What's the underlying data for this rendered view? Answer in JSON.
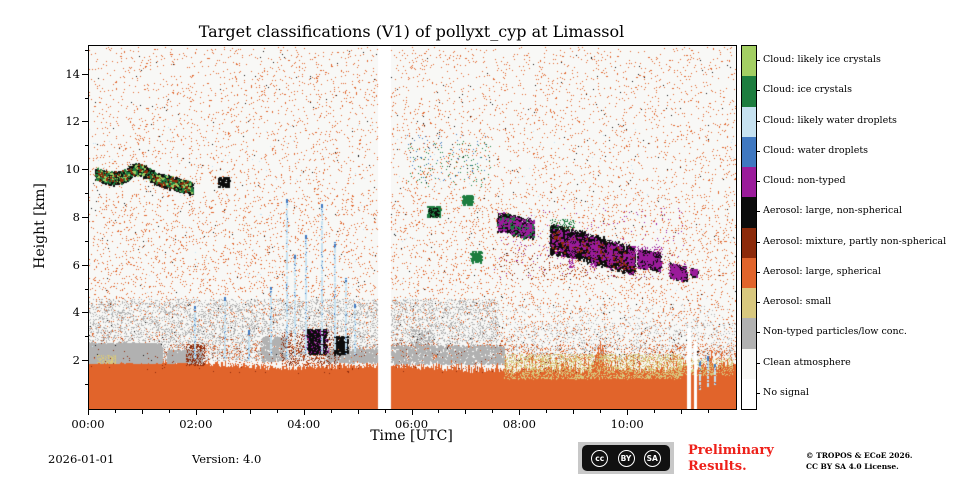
{
  "chart_data": {
    "type": "heatmap",
    "title": "Target classifications (V1) of pollyxt_cyp at Limassol",
    "xlabel": "Time [UTC]",
    "ylabel": "Height [km]",
    "x_hours": 12,
    "y_km_max": 15.2,
    "x_ticks": [
      {
        "t": 0,
        "label": "00:00"
      },
      {
        "t": 2,
        "label": "02:00"
      },
      {
        "t": 4,
        "label": "04:00"
      },
      {
        "t": 6,
        "label": "06:00"
      },
      {
        "t": 8,
        "label": "08:00"
      },
      {
        "t": 10,
        "label": "10:00"
      }
    ],
    "y_ticks": [
      2,
      4,
      6,
      8,
      10,
      12,
      14
    ],
    "classes": [
      {
        "label": "Cloud: likely ice crystals",
        "color": "#a3cf63"
      },
      {
        "label": "Cloud: ice crystals",
        "color": "#1d7d3f"
      },
      {
        "label": "Cloud: likely water droplets",
        "color": "#c6e2f1"
      },
      {
        "label": "Cloud: water droplets",
        "color": "#3f78c1"
      },
      {
        "label": "Cloud: non-typed",
        "color": "#9b1b9b"
      },
      {
        "label": "Aerosol: large, non-spherical",
        "color": "#0c0c0c"
      },
      {
        "label": "Aerosol: mixture, partly non-spherical",
        "color": "#8c2a0a"
      },
      {
        "label": "Aerosol: large, spherical",
        "color": "#e1642b"
      },
      {
        "label": "Aerosol: small",
        "color": "#d8c87e"
      },
      {
        "label": "Non-typed particles/low conc.",
        "color": "#b1b1b1"
      },
      {
        "label": "Clean atmosphere",
        "color": "#f8f8f6"
      },
      {
        "label": "No signal",
        "color": "#ffffff"
      }
    ],
    "bottom": {
      "c": 7,
      "top_nodes": [
        [
          0,
          2.05
        ],
        [
          1.0,
          2.1
        ],
        [
          2.0,
          1.95
        ],
        [
          3.0,
          1.8
        ],
        [
          3.5,
          1.7
        ],
        [
          4.5,
          1.8
        ],
        [
          5.3,
          1.85
        ],
        [
          5.6,
          1.85
        ],
        [
          6.5,
          1.7
        ],
        [
          7.5,
          1.6
        ],
        [
          8.5,
          1.65
        ],
        [
          9.3,
          1.6
        ],
        [
          9.45,
          2.5
        ],
        [
          9.6,
          1.65
        ],
        [
          10.5,
          1.6
        ],
        [
          11.0,
          1.75
        ],
        [
          11.5,
          1.8
        ],
        [
          12,
          1.85
        ]
      ],
      "jitter": 0.25,
      "spikes": {
        "n": 90,
        "t": [
          6.3,
          12
        ],
        "extra": 0.7
      }
    },
    "speckles": [
      {
        "c": 7,
        "t": [
          0,
          12
        ],
        "h": [
          2.0,
          9.0
        ],
        "n": 6500
      },
      {
        "c": 7,
        "t": [
          0,
          12
        ],
        "h": [
          9.0,
          15.15
        ],
        "n": 3800
      },
      {
        "c": 7,
        "t": [
          0,
          12
        ],
        "h": [
          1.7,
          2.7
        ],
        "n": 2200
      },
      {
        "c": 9,
        "t": [
          0,
          7.6
        ],
        "h": [
          2.0,
          4.6
        ],
        "n": 6500
      },
      {
        "c": 9,
        "t": [
          0,
          12
        ],
        "h": [
          2.0,
          4.4
        ],
        "n": 1400
      },
      {
        "c": 9,
        "t": [
          7.6,
          12
        ],
        "h": [
          2.0,
          3.6
        ],
        "n": 700
      },
      {
        "c": 9,
        "t": [
          0,
          1.35
        ],
        "h": [
          1.95,
          2.75
        ],
        "n": 2600,
        "s": 2
      },
      {
        "c": 9,
        "t": [
          1.45,
          2.1
        ],
        "h": [
          1.95,
          2.45
        ],
        "n": 800,
        "s": 2
      },
      {
        "c": 9,
        "t": [
          3.2,
          3.65
        ],
        "h": [
          2.0,
          3.0
        ],
        "n": 450,
        "s": 2
      },
      {
        "c": 9,
        "t": [
          4.4,
          5.33
        ],
        "h": [
          1.95,
          2.5
        ],
        "n": 650,
        "s": 2
      },
      {
        "c": 9,
        "t": [
          5.6,
          7.7
        ],
        "h": [
          1.9,
          2.65
        ],
        "n": 1400,
        "s": 2
      },
      {
        "c": 9,
        "t": [
          6.0,
          6.4
        ],
        "h": [
          2.6,
          3.3
        ],
        "n": 220
      },
      {
        "c": 8,
        "t": [
          7.7,
          11.0
        ],
        "h": [
          1.25,
          2.3
        ],
        "n": 2400
      },
      {
        "c": 8,
        "t": [
          10.9,
          11.95
        ],
        "h": [
          1.4,
          2.1
        ],
        "n": 450
      },
      {
        "c": 8,
        "t": [
          0.15,
          0.5
        ],
        "h": [
          1.9,
          2.25
        ],
        "n": 120
      },
      {
        "c": 6,
        "t": [
          1.8,
          2.15
        ],
        "h": [
          1.8,
          2.7
        ],
        "n": 240
      },
      {
        "c": 6,
        "t": [
          3.55,
          4.65
        ],
        "h": [
          1.8,
          3.2
        ],
        "n": 420
      },
      {
        "c": 6,
        "t": [
          0,
          12
        ],
        "h": [
          1.5,
          3.2
        ],
        "n": 320
      },
      {
        "c": 6,
        "t": [
          7.6,
          10.8
        ],
        "h": [
          5.4,
          6.6
        ],
        "n": 200
      },
      {
        "c": 5,
        "t": [
          0,
          12
        ],
        "h": [
          2,
          15
        ],
        "n": 420
      },
      {
        "c": 1,
        "t": [
          5.9,
          7.45
        ],
        "h": [
          9.3,
          11.2
        ],
        "n": 110
      },
      {
        "c": 3,
        "t": [
          5.9,
          7.45
        ],
        "h": [
          9.5,
          11.5
        ],
        "n": 70
      },
      {
        "c": 2,
        "t": [
          0,
          12
        ],
        "h": [
          2.5,
          12
        ],
        "n": 220
      },
      {
        "c": 5,
        "t": [
          4.05,
          4.4
        ],
        "h": [
          2.3,
          3.35
        ],
        "n": 550,
        "s": 2
      },
      {
        "c": 5,
        "t": [
          4.55,
          4.8
        ],
        "h": [
          2.3,
          3.05
        ],
        "n": 280,
        "s": 2
      },
      {
        "c": 5,
        "t": [
          2.4,
          2.6
        ],
        "h": [
          9.3,
          9.7
        ],
        "n": 110,
        "s": 2
      },
      {
        "c": 1,
        "t": [
          6.28,
          6.52
        ],
        "h": [
          8.05,
          8.5
        ],
        "n": 200,
        "s": 2
      },
      {
        "c": 1,
        "t": [
          6.93,
          7.12
        ],
        "h": [
          8.55,
          8.95
        ],
        "n": 150,
        "s": 2
      },
      {
        "c": 1,
        "t": [
          7.08,
          7.28
        ],
        "h": [
          6.15,
          6.6
        ],
        "n": 140,
        "s": 2
      },
      {
        "c": 5,
        "t": [
          6.3,
          6.5
        ],
        "h": [
          8.0,
          8.4
        ],
        "n": 90
      },
      {
        "c": 4,
        "t": [
          4.0,
          4.45
        ],
        "h": [
          2.3,
          3.3
        ],
        "n": 130,
        "z": 2
      },
      {
        "c": 4,
        "t": [
          7.5,
          11.1
        ],
        "h": [
          5.5,
          8.4
        ],
        "n": 180,
        "z": 2
      },
      {
        "c": 1,
        "t": [
          8.55,
          9.0
        ],
        "h": [
          7.55,
          7.95
        ],
        "n": 80,
        "z": 2
      },
      {
        "c": 4,
        "t": [
          8.9,
          9.0
        ],
        "h": [
          5.9,
          7.2
        ],
        "n": 140,
        "z": 2
      },
      {
        "c": 4,
        "t": [
          9.3,
          9.42
        ],
        "h": [
          5.9,
          7.0
        ],
        "n": 140,
        "z": 2
      },
      {
        "c": 4,
        "t": [
          9.62,
          9.72
        ],
        "h": [
          6.0,
          6.9
        ],
        "n": 110,
        "z": 2
      },
      {
        "c": 4,
        "t": [
          10.0,
          10.1
        ],
        "h": [
          6.0,
          6.6
        ],
        "n": 90,
        "z": 2
      },
      {
        "c": 4,
        "t": [
          10.15,
          10.65
        ],
        "h": [
          5.9,
          6.8
        ],
        "n": 160,
        "z": 2
      },
      {
        "c": 4,
        "t": [
          10.75,
          11.1
        ],
        "h": [
          5.4,
          6.1
        ],
        "n": 120,
        "z": 2
      }
    ],
    "bands": [
      {
        "c": 5,
        "nodes": [
          [
            0.12,
            9.85
          ],
          [
            0.4,
            9.65
          ],
          [
            0.62,
            9.7
          ],
          [
            0.85,
            10.05
          ],
          [
            1.05,
            9.95
          ],
          [
            1.25,
            9.6
          ],
          [
            1.5,
            9.5
          ],
          [
            1.72,
            9.35
          ],
          [
            1.92,
            9.25
          ]
        ],
        "th": 0.5,
        "n": 2800,
        "accents": [
          {
            "c": 1,
            "n": 450
          },
          {
            "c": 0,
            "n": 160
          },
          {
            "c": 6,
            "n": 120
          }
        ]
      },
      {
        "c": 5,
        "nodes": [
          [
            7.58,
            7.8
          ],
          [
            7.8,
            7.75
          ],
          [
            8.0,
            7.6
          ],
          [
            8.25,
            7.5
          ]
        ],
        "th": 0.75,
        "n": 1600,
        "accents": [
          {
            "c": 4,
            "n": 350
          },
          {
            "c": 1,
            "n": 60
          }
        ]
      },
      {
        "c": 5,
        "nodes": [
          [
            8.55,
            7.1
          ],
          [
            8.85,
            7.0
          ],
          [
            9.2,
            6.8
          ],
          [
            9.5,
            6.6
          ],
          [
            9.85,
            6.35
          ],
          [
            10.12,
            6.2
          ]
        ],
        "th": 1.1,
        "n": 5200,
        "accents": [
          {
            "c": 4,
            "n": 500
          },
          {
            "c": 6,
            "n": 150
          }
        ]
      },
      {
        "c": 5,
        "nodes": [
          [
            10.18,
            6.3
          ],
          [
            10.4,
            6.25
          ],
          [
            10.6,
            6.15
          ]
        ],
        "th": 0.7,
        "n": 1100,
        "accents": [
          {
            "c": 4,
            "n": 200
          }
        ]
      },
      {
        "c": 5,
        "nodes": [
          [
            10.78,
            5.8
          ],
          [
            10.95,
            5.7
          ],
          [
            11.08,
            5.65
          ]
        ],
        "th": 0.55,
        "n": 650,
        "accents": [
          {
            "c": 4,
            "n": 150
          }
        ]
      },
      {
        "c": 5,
        "nodes": [
          [
            11.15,
            5.75
          ],
          [
            11.28,
            5.7
          ]
        ],
        "th": 0.3,
        "n": 140,
        "accents": [
          {
            "c": 4,
            "n": 50
          }
        ]
      }
    ],
    "columns": [
      {
        "t": 1.95,
        "h": [
          2.1,
          4.3
        ]
      },
      {
        "t": 2.5,
        "h": [
          2.1,
          4.7
        ]
      },
      {
        "t": 2.95,
        "h": [
          2.0,
          3.3
        ]
      },
      {
        "t": 3.35,
        "h": [
          2.2,
          5.1
        ]
      },
      {
        "t": 3.65,
        "h": [
          2.1,
          8.8
        ]
      },
      {
        "t": 3.8,
        "h": [
          2.2,
          6.5
        ]
      },
      {
        "t": 4.0,
        "h": [
          2.3,
          7.3
        ]
      },
      {
        "t": 4.3,
        "h": [
          2.3,
          8.6
        ]
      },
      {
        "t": 4.55,
        "h": [
          2.4,
          7.0
        ]
      },
      {
        "t": 4.75,
        "h": [
          2.3,
          5.5
        ]
      },
      {
        "t": 4.92,
        "h": [
          2.2,
          4.4
        ]
      },
      {
        "t": 11.32,
        "h": [
          0.8,
          2.0
        ]
      },
      {
        "t": 11.47,
        "h": [
          0.9,
          2.2
        ]
      },
      {
        "t": 11.6,
        "h": [
          1.0,
          1.9
        ]
      }
    ],
    "gaps": [
      {
        "t": [
          5.36,
          5.6
        ],
        "h": [
          0,
          15.2
        ]
      },
      {
        "t": [
          11.1,
          11.18
        ],
        "h": [
          0,
          3.4
        ]
      },
      {
        "t": [
          11.22,
          11.28
        ],
        "h": [
          0,
          2.8
        ]
      }
    ]
  },
  "footer": {
    "date": "2026-01-01",
    "version": "Version: 4.0",
    "preliminary_line1": "Preliminary",
    "preliminary_line2": "Results.",
    "copyright_line1": "© TROPOS & ECoE 2026.",
    "copyright_line2": "CC BY SA 4.0 License.",
    "cc_icons": [
      "cc",
      "BY",
      "SA"
    ]
  }
}
